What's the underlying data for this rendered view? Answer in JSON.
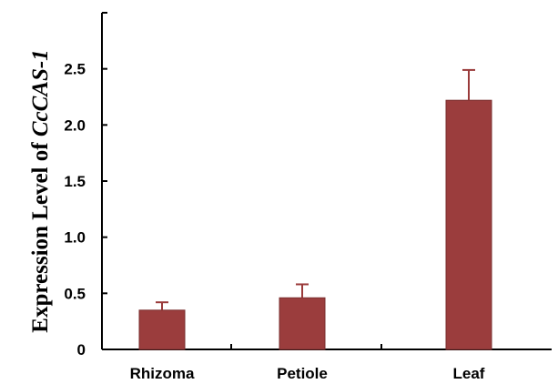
{
  "chart_data": {
    "type": "bar",
    "title": "",
    "xlabel": "",
    "ylabel": "Expression Level of",
    "ylabel_gene": "CcCAS-1",
    "categories": [
      "Rhizoma",
      "Petiole",
      "Leaf"
    ],
    "values": [
      0.35,
      0.46,
      2.22
    ],
    "errors": [
      0.07,
      0.12,
      0.27
    ],
    "ylim": [
      0,
      3.0
    ],
    "yticks": [
      0,
      0.5,
      1.0,
      1.5,
      2.0,
      2.5
    ],
    "ytick_labels": [
      "0",
      "0.5",
      "1.0",
      "1.5",
      "2.0",
      "2.5"
    ],
    "grid": false,
    "legend": "none",
    "bar_color": "#9b3d3d",
    "bar_edge_color": "#7a2f2f",
    "axis_color": "#000000"
  }
}
